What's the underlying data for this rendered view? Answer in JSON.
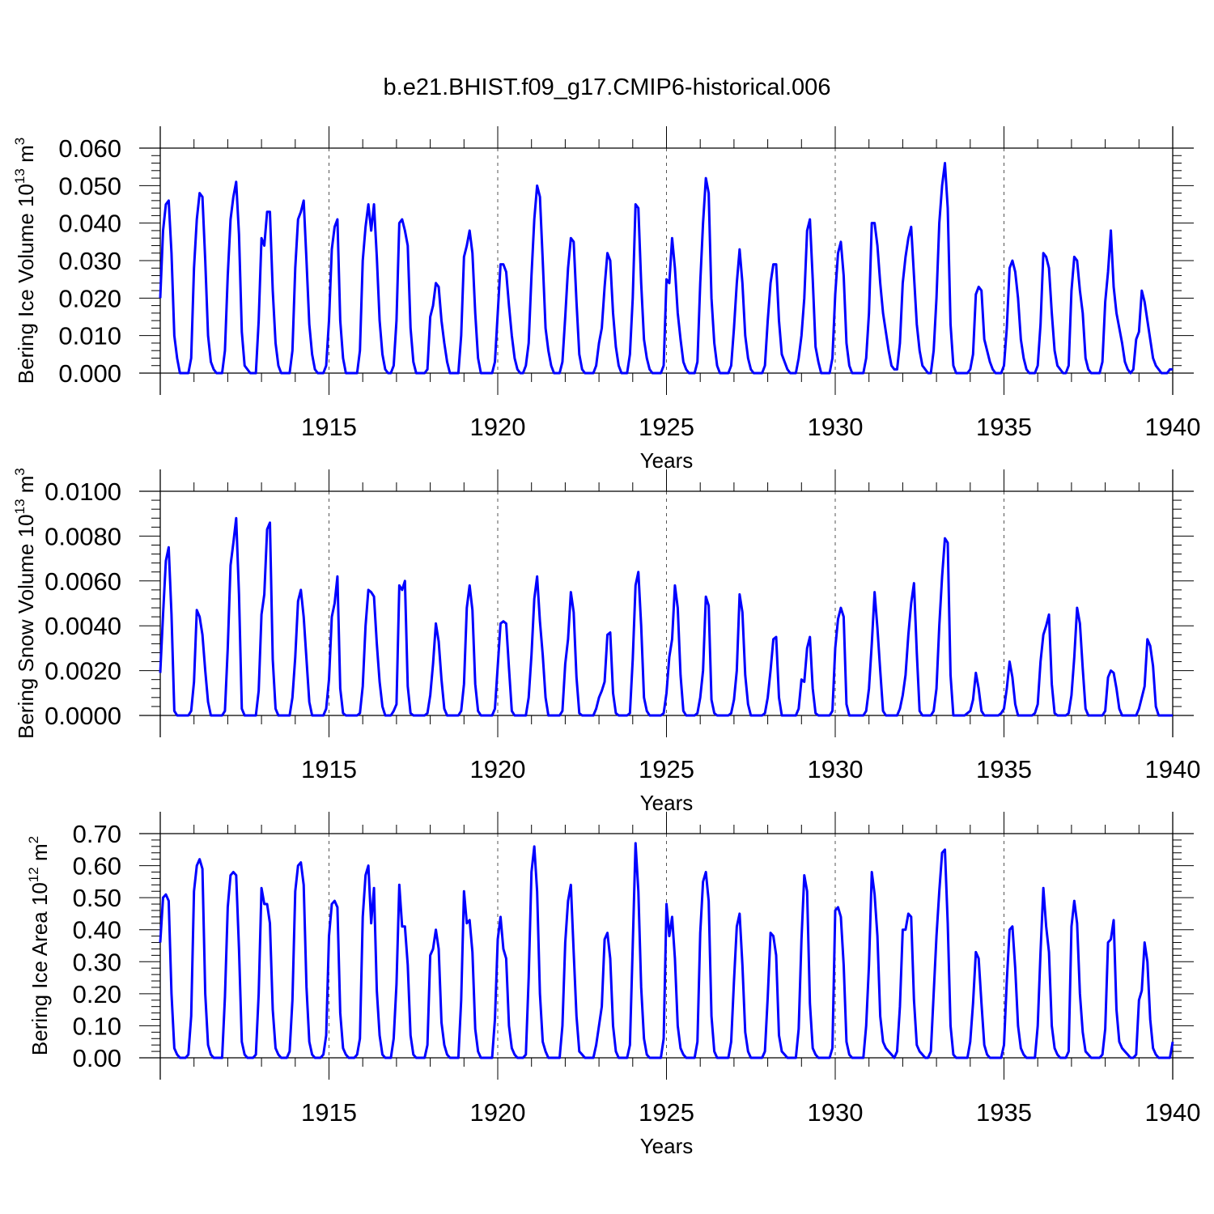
{
  "title": "b.e21.BHIST.f09_g17.CMIP6-historical.006",
  "line_color": "#0000ff",
  "chart_data": [
    {
      "type": "line",
      "name": "ice-volume",
      "ylabel": "Bering Ice Volume 10",
      "ylabel_exp": "13",
      "ylabel_unit": " m",
      "ylabel_unit_exp": "3",
      "xlabel": "Years",
      "xlim": [
        1910.0,
        1940.0
      ],
      "ylim": [
        0.0,
        0.06
      ],
      "ytick_values": [
        0.0,
        0.01,
        0.02,
        0.03,
        0.04,
        0.05,
        0.06
      ],
      "ytick_labels": [
        "0.000",
        "0.010",
        "0.020",
        "0.030",
        "0.040",
        "0.050",
        "0.060"
      ],
      "xtick_values": [
        1915,
        1920,
        1925,
        1930,
        1935,
        1940
      ],
      "xtick_labels": [
        "1915",
        "1920",
        "1925",
        "1930",
        "1935",
        "1940"
      ],
      "start_year": 1910.0,
      "step_years": 0.08333,
      "values": [
        0.02,
        0.038,
        0.045,
        0.046,
        0.032,
        0.01,
        0.004,
        0.0,
        0.0,
        0.0,
        0.0,
        0.004,
        0.028,
        0.041,
        0.048,
        0.047,
        0.03,
        0.01,
        0.003,
        0.001,
        0.0,
        0.0,
        0.0,
        0.006,
        0.026,
        0.041,
        0.047,
        0.051,
        0.037,
        0.011,
        0.002,
        0.001,
        0.0,
        0.0,
        0.0,
        0.014,
        0.036,
        0.034,
        0.043,
        0.043,
        0.022,
        0.008,
        0.002,
        0.0,
        0.0,
        0.0,
        0.0,
        0.006,
        0.028,
        0.041,
        0.043,
        0.046,
        0.03,
        0.013,
        0.005,
        0.001,
        0.0,
        0.0,
        0.0,
        0.002,
        0.014,
        0.033,
        0.039,
        0.041,
        0.014,
        0.004,
        0.0,
        0.0,
        0.0,
        0.0,
        0.0,
        0.006,
        0.03,
        0.039,
        0.045,
        0.038,
        0.045,
        0.031,
        0.014,
        0.005,
        0.001,
        0.0,
        0.0,
        0.002,
        0.014,
        0.04,
        0.041,
        0.038,
        0.034,
        0.012,
        0.003,
        0.0,
        0.0,
        0.0,
        0.0,
        0.001,
        0.015,
        0.018,
        0.024,
        0.023,
        0.014,
        0.008,
        0.003,
        0.0,
        0.0,
        0.0,
        0.0,
        0.01,
        0.031,
        0.034,
        0.038,
        0.032,
        0.016,
        0.004,
        0.0,
        0.0,
        0.0,
        0.0,
        0.0,
        0.003,
        0.016,
        0.029,
        0.029,
        0.027,
        0.018,
        0.01,
        0.004,
        0.001,
        0.0,
        0.0,
        0.002,
        0.008,
        0.026,
        0.041,
        0.05,
        0.047,
        0.03,
        0.012,
        0.006,
        0.002,
        0.0,
        0.0,
        0.0,
        0.003,
        0.015,
        0.028,
        0.036,
        0.035,
        0.019,
        0.005,
        0.001,
        0.0,
        0.0,
        0.0,
        0.0,
        0.002,
        0.008,
        0.012,
        0.023,
        0.032,
        0.03,
        0.016,
        0.007,
        0.002,
        0.0,
        0.0,
        0.0,
        0.005,
        0.02,
        0.045,
        0.044,
        0.024,
        0.009,
        0.004,
        0.001,
        0.0,
        0.0,
        0.0,
        0.0,
        0.002,
        0.025,
        0.024,
        0.036,
        0.028,
        0.016,
        0.009,
        0.003,
        0.001,
        0.0,
        0.0,
        0.0,
        0.003,
        0.024,
        0.04,
        0.052,
        0.048,
        0.02,
        0.008,
        0.002,
        0.0,
        0.0,
        0.0,
        0.0,
        0.002,
        0.012,
        0.024,
        0.033,
        0.024,
        0.01,
        0.004,
        0.001,
        0.0,
        0.0,
        0.0,
        0.0,
        0.002,
        0.014,
        0.024,
        0.029,
        0.029,
        0.014,
        0.005,
        0.003,
        0.001,
        0.0,
        0.0,
        0.0,
        0.004,
        0.01,
        0.02,
        0.038,
        0.041,
        0.025,
        0.007,
        0.003,
        0.0,
        0.0,
        0.0,
        0.0,
        0.004,
        0.021,
        0.032,
        0.035,
        0.026,
        0.008,
        0.002,
        0.0,
        0.0,
        0.0,
        0.0,
        0.0,
        0.004,
        0.016,
        0.04,
        0.04,
        0.034,
        0.024,
        0.016,
        0.011,
        0.006,
        0.002,
        0.001,
        0.001,
        0.008,
        0.024,
        0.031,
        0.036,
        0.039,
        0.026,
        0.013,
        0.006,
        0.002,
        0.001,
        0.0,
        0.0,
        0.006,
        0.02,
        0.04,
        0.05,
        0.056,
        0.044,
        0.013,
        0.002,
        0.0,
        0.0,
        0.0,
        0.0,
        0.0,
        0.001,
        0.005,
        0.021,
        0.023,
        0.022,
        0.009,
        0.006,
        0.003,
        0.001,
        0.0,
        0.0,
        0.0,
        0.002,
        0.012,
        0.028,
        0.03,
        0.027,
        0.02,
        0.009,
        0.004,
        0.001,
        0.0,
        0.0,
        0.0,
        0.002,
        0.013,
        0.032,
        0.031,
        0.028,
        0.016,
        0.006,
        0.002,
        0.001,
        0.0,
        0.0,
        0.002,
        0.022,
        0.031,
        0.03,
        0.022,
        0.016,
        0.004,
        0.001,
        0.0,
        0.0,
        0.0,
        0.0,
        0.003,
        0.019,
        0.027,
        0.038,
        0.023,
        0.016,
        0.012,
        0.008,
        0.003,
        0.001,
        0.0,
        0.001,
        0.009,
        0.011,
        0.022,
        0.019,
        0.014,
        0.009,
        0.004,
        0.002,
        0.001,
        0.0,
        0.0,
        0.0,
        0.001,
        0.001
      ]
    },
    {
      "type": "line",
      "name": "snow-volume",
      "ylabel": "Bering Snow Volume 10",
      "ylabel_exp": "13",
      "ylabel_unit": " m",
      "ylabel_unit_exp": "3",
      "xlabel": "Years",
      "xlim": [
        1910.0,
        1940.0
      ],
      "ylim": [
        0.0,
        0.01
      ],
      "ytick_values": [
        0.0,
        0.002,
        0.004,
        0.006,
        0.008,
        0.01
      ],
      "ytick_labels": [
        "0.0000",
        "0.0020",
        "0.0040",
        "0.0060",
        "0.0080",
        "0.0100"
      ],
      "xtick_values": [
        1915,
        1920,
        1925,
        1930,
        1935,
        1940
      ],
      "xtick_labels": [
        "1915",
        "1920",
        "1925",
        "1930",
        "1935",
        "1940"
      ],
      "start_year": 1910.0,
      "step_years": 0.08333,
      "values": [
        0.0019,
        0.0045,
        0.0069,
        0.0075,
        0.0045,
        0.0002,
        0.0,
        0.0,
        0.0,
        0.0,
        0.0,
        0.0002,
        0.0015,
        0.0047,
        0.0044,
        0.0036,
        0.002,
        0.0006,
        0.0,
        0.0,
        0.0,
        0.0,
        0.0,
        0.0002,
        0.003,
        0.0067,
        0.0077,
        0.0088,
        0.0054,
        0.0003,
        0.0,
        0.0,
        0.0,
        0.0,
        0.0,
        0.0011,
        0.0045,
        0.0054,
        0.0083,
        0.0086,
        0.0025,
        0.0003,
        0.0,
        0.0,
        0.0,
        0.0,
        0.0,
        0.0008,
        0.0026,
        0.0051,
        0.0056,
        0.0044,
        0.0025,
        0.0006,
        0.0,
        0.0,
        0.0,
        0.0,
        0.0,
        0.0003,
        0.0016,
        0.0044,
        0.005,
        0.0062,
        0.0012,
        0.0001,
        0.0,
        0.0,
        0.0,
        0.0,
        0.0,
        0.0001,
        0.0013,
        0.004,
        0.0056,
        0.0055,
        0.0053,
        0.0032,
        0.0015,
        0.0004,
        0.0,
        0.0,
        0.0,
        0.0002,
        0.0005,
        0.0058,
        0.0056,
        0.006,
        0.0013,
        0.0001,
        0.0,
        0.0,
        0.0,
        0.0,
        0.0,
        0.0001,
        0.0009,
        0.0023,
        0.0041,
        0.0033,
        0.0016,
        0.0003,
        0.0,
        0.0,
        0.0,
        0.0,
        0.0,
        0.0002,
        0.0014,
        0.0048,
        0.0058,
        0.0047,
        0.0014,
        0.0002,
        0.0,
        0.0,
        0.0,
        0.0,
        0.0,
        0.0003,
        0.0022,
        0.0041,
        0.0042,
        0.0041,
        0.0021,
        0.0002,
        0.0,
        0.0,
        0.0,
        0.0,
        0.0,
        0.0008,
        0.0027,
        0.0052,
        0.0062,
        0.0042,
        0.0027,
        0.0008,
        0.0,
        0.0,
        0.0,
        0.0,
        0.0,
        0.0002,
        0.0023,
        0.0034,
        0.0055,
        0.0046,
        0.0017,
        0.0001,
        0.0,
        0.0,
        0.0,
        0.0,
        0.0,
        0.0003,
        0.0008,
        0.0011,
        0.0015,
        0.0036,
        0.0037,
        0.001,
        0.0001,
        0.0,
        0.0,
        0.0,
        0.0,
        0.0001,
        0.0025,
        0.0058,
        0.0064,
        0.004,
        0.0008,
        0.0002,
        0.0,
        0.0,
        0.0,
        0.0,
        0.0,
        0.0001,
        0.001,
        0.0026,
        0.0034,
        0.0058,
        0.0048,
        0.0018,
        0.0002,
        0.0,
        0.0,
        0.0,
        0.0,
        0.0001,
        0.0008,
        0.002,
        0.0053,
        0.0049,
        0.0007,
        0.0001,
        0.0,
        0.0,
        0.0,
        0.0,
        0.0,
        0.0001,
        0.0007,
        0.002,
        0.0054,
        0.0046,
        0.0018,
        0.0005,
        0.0,
        0.0,
        0.0,
        0.0,
        0.0,
        0.0001,
        0.0008,
        0.002,
        0.0034,
        0.0035,
        0.0008,
        0.0,
        0.0,
        0.0,
        0.0,
        0.0,
        0.0,
        0.0003,
        0.0016,
        0.0015,
        0.003,
        0.0035,
        0.0012,
        0.0001,
        0.0,
        0.0,
        0.0,
        0.0,
        0.0,
        0.0002,
        0.003,
        0.0043,
        0.0048,
        0.0044,
        0.0005,
        0.0,
        0.0,
        0.0,
        0.0,
        0.0,
        0.0,
        0.0002,
        0.0012,
        0.0032,
        0.0055,
        0.0039,
        0.002,
        0.0002,
        0.0,
        0.0,
        0.0,
        0.0,
        0.0,
        0.0003,
        0.0009,
        0.0018,
        0.0036,
        0.005,
        0.0059,
        0.0028,
        0.0002,
        0.0,
        0.0,
        0.0,
        0.0,
        0.0002,
        0.0012,
        0.004,
        0.0062,
        0.0079,
        0.0077,
        0.0018,
        0.0,
        0.0,
        0.0,
        0.0,
        0.0,
        0.0001,
        0.0002,
        0.0007,
        0.0019,
        0.0012,
        0.0002,
        0.0,
        0.0,
        0.0,
        0.0,
        0.0,
        0.0,
        0.0001,
        0.0003,
        0.0012,
        0.0024,
        0.0017,
        0.0005,
        0.0,
        0.0,
        0.0,
        0.0,
        0.0,
        0.0,
        0.0001,
        0.0005,
        0.0024,
        0.0036,
        0.004,
        0.0045,
        0.0014,
        0.0001,
        0.0,
        0.0,
        0.0,
        0.0,
        0.0001,
        0.0009,
        0.0026,
        0.0048,
        0.0041,
        0.0021,
        0.0003,
        0.0,
        0.0,
        0.0,
        0.0,
        0.0,
        0.0,
        0.0002,
        0.0017,
        0.002,
        0.0019,
        0.0012,
        0.0003,
        0.0,
        0.0,
        0.0,
        0.0,
        0.0,
        0.0,
        0.0003,
        0.0008,
        0.0013,
        0.0034,
        0.0031,
        0.0022,
        0.0004,
        0.0,
        0.0,
        0.0,
        0.0,
        0.0,
        0.0
      ]
    },
    {
      "type": "line",
      "name": "ice-area",
      "ylabel": "Bering Ice Area 10",
      "ylabel_exp": "12",
      "ylabel_unit": " m",
      "ylabel_unit_exp": "2",
      "xlabel": "Years",
      "xlim": [
        1910.0,
        1940.0
      ],
      "ylim": [
        0.0,
        0.7
      ],
      "ytick_values": [
        0.0,
        0.1,
        0.2,
        0.3,
        0.4,
        0.5,
        0.6,
        0.7
      ],
      "ytick_labels": [
        "0.00",
        "0.10",
        "0.20",
        "0.30",
        "0.40",
        "0.50",
        "0.60",
        "0.70"
      ],
      "xtick_values": [
        1915,
        1920,
        1925,
        1930,
        1935,
        1940
      ],
      "xtick_labels": [
        "1915",
        "1920",
        "1925",
        "1930",
        "1935",
        "1940"
      ],
      "start_year": 1910.0,
      "step_years": 0.08333,
      "values": [
        0.36,
        0.5,
        0.51,
        0.49,
        0.2,
        0.03,
        0.01,
        0.0,
        0.0,
        0.0,
        0.01,
        0.13,
        0.52,
        0.6,
        0.62,
        0.59,
        0.2,
        0.04,
        0.01,
        0.0,
        0.0,
        0.0,
        0.0,
        0.19,
        0.47,
        0.57,
        0.58,
        0.57,
        0.34,
        0.05,
        0.01,
        0.0,
        0.0,
        0.0,
        0.01,
        0.2,
        0.53,
        0.48,
        0.48,
        0.42,
        0.15,
        0.03,
        0.01,
        0.0,
        0.0,
        0.0,
        0.02,
        0.18,
        0.52,
        0.6,
        0.61,
        0.54,
        0.22,
        0.05,
        0.01,
        0.0,
        0.0,
        0.0,
        0.01,
        0.07,
        0.38,
        0.48,
        0.49,
        0.47,
        0.14,
        0.03,
        0.01,
        0.0,
        0.0,
        0.0,
        0.01,
        0.06,
        0.44,
        0.57,
        0.6,
        0.42,
        0.53,
        0.21,
        0.07,
        0.01,
        0.0,
        0.0,
        0.0,
        0.06,
        0.23,
        0.54,
        0.41,
        0.41,
        0.29,
        0.07,
        0.01,
        0.0,
        0.0,
        0.0,
        0.0,
        0.04,
        0.32,
        0.34,
        0.4,
        0.34,
        0.11,
        0.04,
        0.01,
        0.0,
        0.0,
        0.0,
        0.0,
        0.18,
        0.52,
        0.42,
        0.43,
        0.33,
        0.09,
        0.02,
        0.0,
        0.0,
        0.0,
        0.0,
        0.0,
        0.12,
        0.37,
        0.44,
        0.34,
        0.31,
        0.1,
        0.03,
        0.01,
        0.0,
        0.0,
        0.0,
        0.01,
        0.25,
        0.58,
        0.66,
        0.52,
        0.2,
        0.05,
        0.02,
        0.0,
        0.0,
        0.0,
        0.0,
        0.0,
        0.1,
        0.36,
        0.49,
        0.54,
        0.33,
        0.13,
        0.02,
        0.01,
        0.0,
        0.0,
        0.0,
        0.0,
        0.04,
        0.1,
        0.16,
        0.37,
        0.39,
        0.31,
        0.1,
        0.02,
        0.0,
        0.0,
        0.0,
        0.0,
        0.04,
        0.35,
        0.67,
        0.52,
        0.22,
        0.06,
        0.01,
        0.0,
        0.0,
        0.0,
        0.0,
        0.0,
        0.06,
        0.48,
        0.38,
        0.44,
        0.31,
        0.1,
        0.03,
        0.01,
        0.0,
        0.0,
        0.0,
        0.0,
        0.05,
        0.39,
        0.55,
        0.58,
        0.49,
        0.13,
        0.02,
        0.0,
        0.0,
        0.0,
        0.0,
        0.0,
        0.05,
        0.24,
        0.41,
        0.45,
        0.29,
        0.08,
        0.02,
        0.0,
        0.0,
        0.0,
        0.0,
        0.0,
        0.02,
        0.19,
        0.39,
        0.38,
        0.32,
        0.07,
        0.02,
        0.01,
        0.0,
        0.0,
        0.0,
        0.0,
        0.09,
        0.37,
        0.57,
        0.52,
        0.17,
        0.03,
        0.01,
        0.0,
        0.0,
        0.0,
        0.0,
        0.0,
        0.03,
        0.46,
        0.47,
        0.44,
        0.29,
        0.05,
        0.01,
        0.0,
        0.0,
        0.0,
        0.0,
        0.0,
        0.1,
        0.29,
        0.58,
        0.51,
        0.38,
        0.13,
        0.05,
        0.03,
        0.02,
        0.01,
        0.0,
        0.02,
        0.16,
        0.4,
        0.4,
        0.45,
        0.44,
        0.18,
        0.04,
        0.02,
        0.01,
        0.0,
        0.0,
        0.02,
        0.2,
        0.38,
        0.52,
        0.64,
        0.65,
        0.42,
        0.1,
        0.01,
        0.0,
        0.0,
        0.0,
        0.0,
        0.0,
        0.05,
        0.17,
        0.33,
        0.31,
        0.17,
        0.04,
        0.01,
        0.0,
        0.0,
        0.0,
        0.0,
        0.0,
        0.04,
        0.24,
        0.4,
        0.41,
        0.28,
        0.1,
        0.03,
        0.01,
        0.0,
        0.0,
        0.0,
        0.0,
        0.1,
        0.33,
        0.53,
        0.41,
        0.33,
        0.1,
        0.03,
        0.01,
        0.0,
        0.0,
        0.0,
        0.02,
        0.41,
        0.49,
        0.42,
        0.2,
        0.08,
        0.02,
        0.01,
        0.0,
        0.0,
        0.0,
        0.0,
        0.01,
        0.09,
        0.36,
        0.37,
        0.43,
        0.15,
        0.05,
        0.03,
        0.02,
        0.01,
        0.0,
        0.0,
        0.01,
        0.18,
        0.21,
        0.36,
        0.3,
        0.12,
        0.03,
        0.01,
        0.0,
        0.0,
        0.0,
        0.0,
        0.0,
        0.05
      ]
    }
  ]
}
